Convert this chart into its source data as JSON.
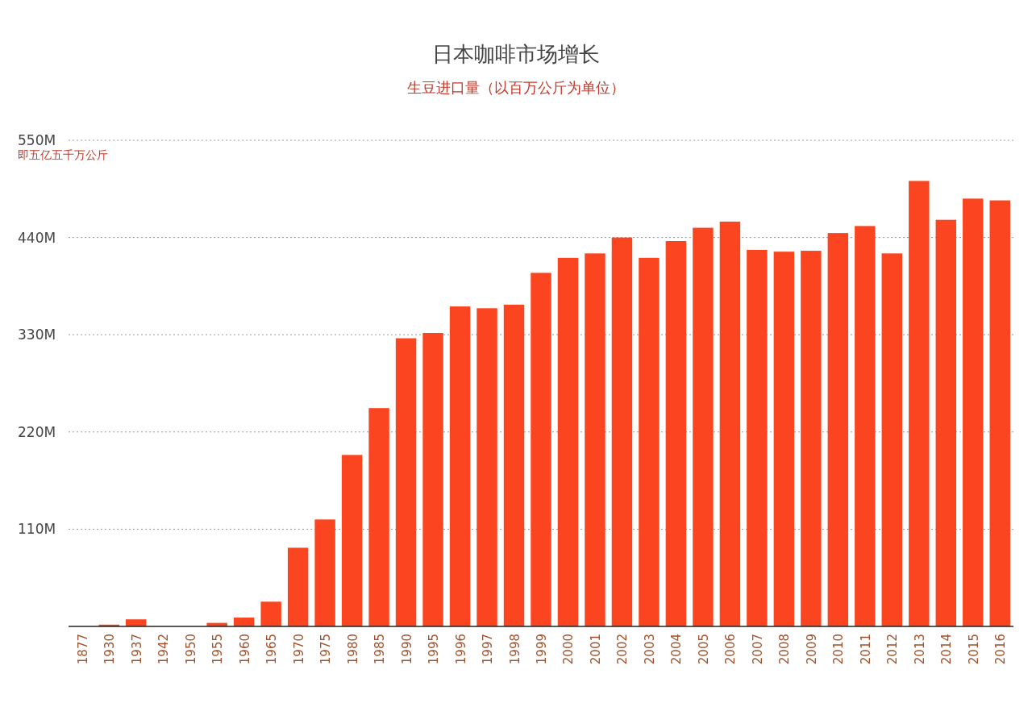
{
  "chart_data": {
    "type": "bar",
    "title": "日本咖啡市场增长",
    "subtitle": "生豆进口量（以百万公斤为单位）",
    "annotations": [
      "即五亿五千万公斤"
    ],
    "categories": [
      "1877",
      "1930",
      "1937",
      "1942",
      "1950",
      "1955",
      "1960",
      "1965",
      "1970",
      "1975",
      "1980",
      "1985",
      "1990",
      "1995",
      "1996",
      "1997",
      "1998",
      "1999",
      "2000",
      "2001",
      "2002",
      "2003",
      "2004",
      "2005",
      "2006",
      "2007",
      "2008",
      "2009",
      "2010",
      "2011",
      "2012",
      "2013",
      "2014",
      "2015",
      "2016"
    ],
    "values": [
      0,
      2,
      8,
      0,
      0,
      4,
      10,
      28,
      89,
      121,
      194,
      247,
      326,
      332,
      362,
      360,
      364,
      400,
      417,
      422,
      440,
      417,
      436,
      451,
      458,
      426,
      424,
      425,
      445,
      453,
      422,
      504,
      460,
      484,
      482
    ],
    "color": "#fb4520",
    "ylim": [
      0,
      550
    ],
    "yticks": [
      {
        "value": 0,
        "label": null
      },
      {
        "value": 110,
        "label": "110M"
      },
      {
        "value": 220,
        "label": "220M"
      },
      {
        "value": 330,
        "label": "330M"
      },
      {
        "value": 440,
        "label": "440M"
      },
      {
        "value": 550,
        "label": "550M"
      }
    ],
    "grid": "y"
  }
}
